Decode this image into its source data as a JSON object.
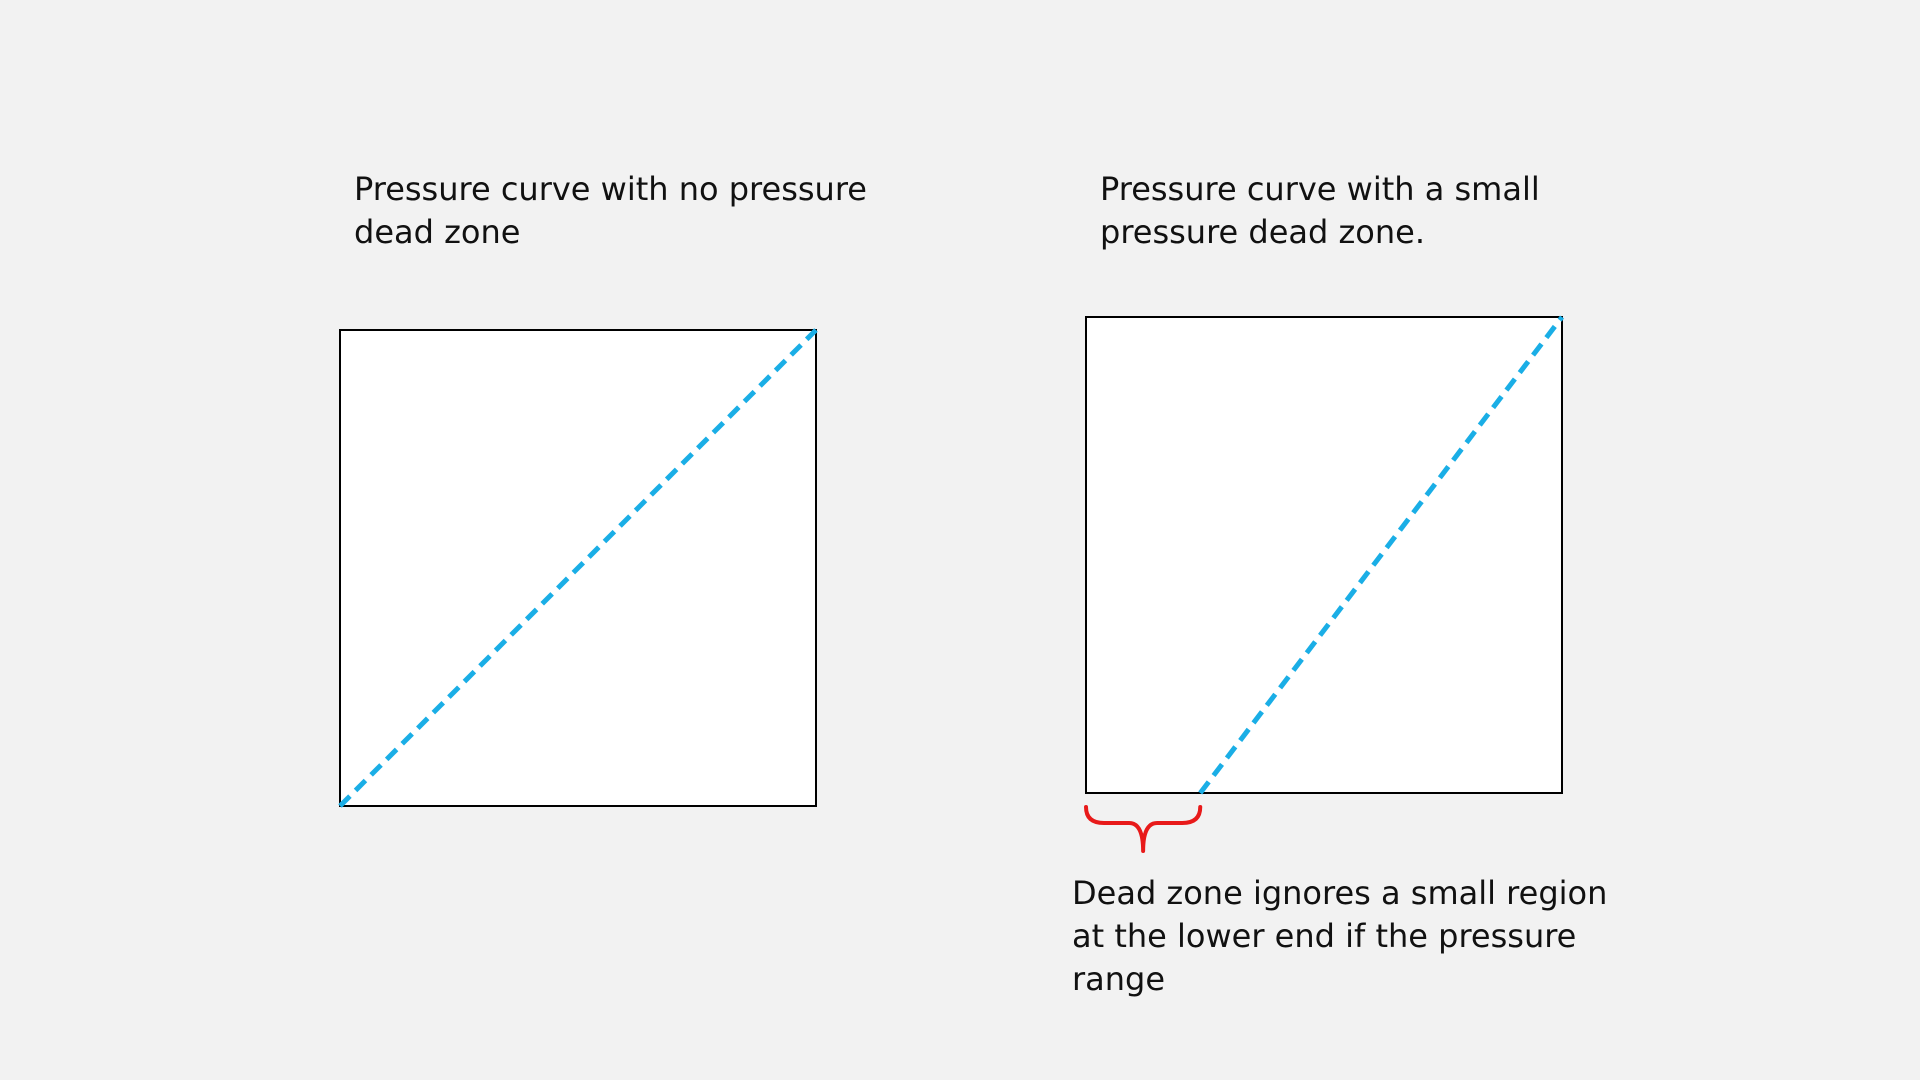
{
  "left_panel": {
    "caption_lines": [
      "Pressure curve with no pressure",
      "dead zone"
    ],
    "dead_zone_fraction": 0
  },
  "right_panel": {
    "caption_lines": [
      "Pressure curve with a small",
      "pressure dead zone."
    ],
    "dead_zone_fraction": 0.24
  },
  "dead_zone_annotation": {
    "caption_lines": [
      "Dead zone ignores a small region",
      "at the lower end if the pressure",
      "range"
    ]
  },
  "colors": {
    "background": "#f2f2f2",
    "box_fill": "#ffffff",
    "box_border": "#000000",
    "curve": "#1aaee6",
    "brace": "#e81a1a",
    "text": "#111111"
  }
}
